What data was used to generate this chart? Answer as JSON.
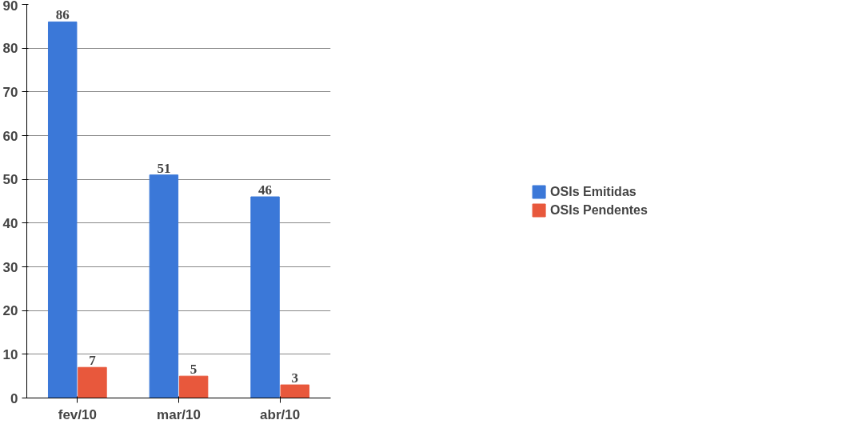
{
  "chart_data": {
    "type": "bar",
    "categories": [
      "fev/10",
      "mar/10",
      "abr/10"
    ],
    "series": [
      {
        "name": "OSIs Emitidas",
        "color": "#3b78d8",
        "values": [
          86,
          51,
          46
        ]
      },
      {
        "name": "OSIs Pendentes",
        "color": "#e8583c",
        "values": [
          7,
          5,
          3
        ]
      }
    ],
    "ylim": [
      0,
      90
    ],
    "yticks": [
      0,
      10,
      20,
      30,
      40,
      50,
      60,
      70,
      80,
      90
    ],
    "grid": "y",
    "legend": "right",
    "data_labels": true
  }
}
